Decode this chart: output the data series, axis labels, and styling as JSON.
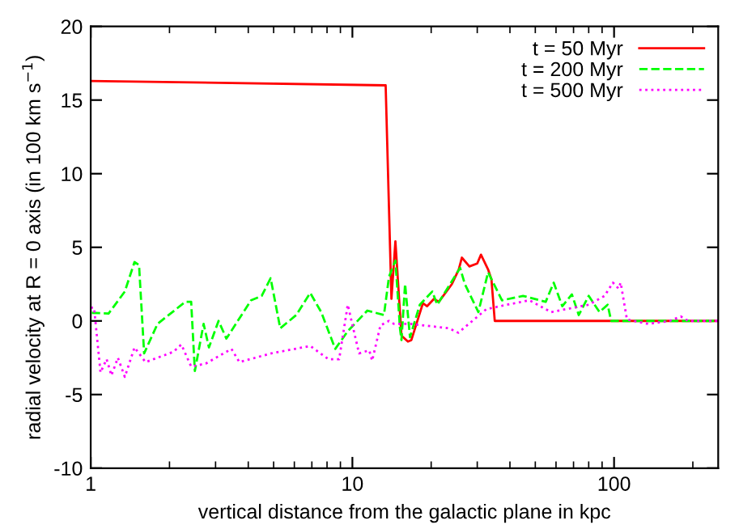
{
  "chart_data": {
    "type": "line",
    "xlabel": "vertical distance from the galactic plane in kpc",
    "ylabel": "radial velocity at R = 0 axis (in 100 km s$^{−1}$)",
    "log": "x",
    "xlim": [
      1,
      250
    ],
    "xticks": [
      1,
      10,
      100
    ],
    "ylim": [
      -10,
      20
    ],
    "yticks": [
      -10,
      -5,
      0,
      5,
      10,
      15,
      20
    ],
    "grid": false,
    "legend": "top right",
    "series": [
      {
        "name": "t = 50 Myr",
        "color": "#ff0000",
        "line_style": "solid",
        "x": [
          1,
          13.4,
          14.1,
          14.6,
          15.4,
          16.3,
          16.8,
          18.6,
          19.3,
          20.5,
          21.4,
          24,
          25.5,
          26.2,
          28,
          30,
          31,
          33,
          34,
          35,
          250
        ],
        "values": [
          16.3,
          16.0,
          1.5,
          5.4,
          -1.0,
          -1.4,
          -1.3,
          1.2,
          1.0,
          1.5,
          1.3,
          2.5,
          3.5,
          4.3,
          3.7,
          3.9,
          4.5,
          3.5,
          2.8,
          0,
          0
        ]
      },
      {
        "name": "t = 200 Myr",
        "color": "#00ff00",
        "line_style": "dashed",
        "x": [
          1.01,
          1.17,
          1.35,
          1.47,
          1.53,
          1.6,
          1.8,
          2.3,
          2.42,
          2.5,
          2.7,
          2.83,
          3.08,
          3.3,
          4.1,
          4.5,
          4.87,
          5.3,
          6.1,
          6.9,
          7.6,
          8.6,
          9.6,
          11.4,
          13.2,
          13.8,
          14.6,
          15.2,
          15.4,
          15.9,
          16.6,
          18.1,
          20.2,
          21.1,
          25.8,
          26.9,
          30.3,
          33,
          37.3,
          44.9,
          54.8,
          58.8,
          63.4,
          69,
          73.3,
          80,
          88,
          94.5,
          97.5,
          250
        ],
        "values": [
          0.55,
          0.5,
          2.0,
          4.0,
          3.8,
          -2.2,
          -0.2,
          1.3,
          1.3,
          -3.4,
          -0.2,
          -1.8,
          0,
          -1.2,
          1.4,
          1.7,
          2.9,
          -0.5,
          0.4,
          1.9,
          0.6,
          -1.9,
          -0.7,
          0.7,
          0.4,
          3.0,
          4.1,
          -0.5,
          -1.3,
          2.5,
          -1.1,
          1.1,
          2.0,
          1.1,
          3.6,
          2.5,
          0.6,
          3.3,
          1.4,
          1.7,
          1.3,
          2.6,
          1.0,
          1.8,
          0.4,
          1.7,
          0.6,
          1.1,
          0,
          0
        ]
      },
      {
        "name": "t = 500 Myr",
        "color": "#ff00ff",
        "line_style": "dotted",
        "x": [
          1.0,
          1.03,
          1.09,
          1.15,
          1.2,
          1.27,
          1.35,
          1.47,
          1.62,
          2.07,
          2.22,
          2.42,
          2.75,
          3.45,
          3.7,
          4.9,
          6.9,
          8.1,
          8.9,
          9.6,
          10.6,
          11.6,
          11.9,
          12.8,
          13.8,
          14.4,
          16.6,
          23.4,
          25.4,
          32.5,
          39,
          47.5,
          57.5,
          80,
          92,
          99,
          104,
          106,
          112,
          135,
          163,
          180,
          192,
          250
        ],
        "values": [
          0.9,
          0.9,
          -3.5,
          -2.6,
          -3.7,
          -2.5,
          -3.8,
          -1.8,
          -2.8,
          -2.1,
          -1.6,
          -3.1,
          -2.9,
          -1.9,
          -2.8,
          -2.2,
          -1.7,
          -2.6,
          -2.6,
          1.1,
          -2.2,
          -2.0,
          -2.7,
          -0.3,
          0,
          -0.2,
          -0.2,
          -0.5,
          -0.8,
          0.8,
          1.1,
          1.4,
          0.6,
          1.1,
          1.7,
          2.6,
          2.2,
          2.6,
          0.1,
          -0.2,
          0,
          0.3,
          0,
          0
        ]
      }
    ]
  }
}
